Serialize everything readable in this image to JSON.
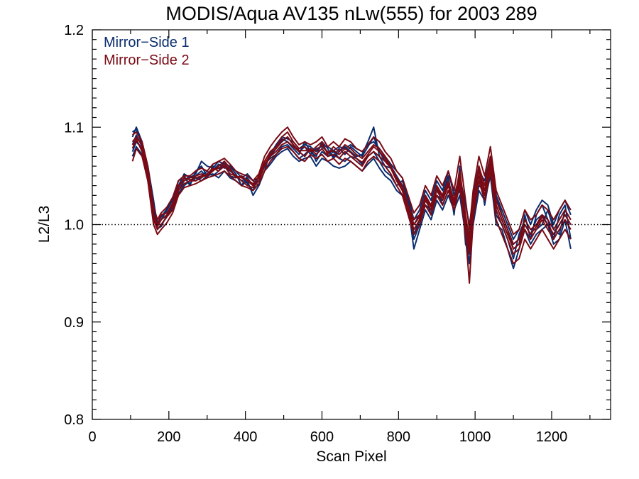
{
  "chart_data": {
    "type": "line",
    "title": "MODIS/Aqua AV135 nLw(555) for 2003 289",
    "xlabel": "Scan Pixel",
    "ylabel": "L2/L3",
    "xlim": [
      0,
      1354
    ],
    "ylim": [
      0.8,
      1.2
    ],
    "x_major_ticks": [
      0,
      200,
      400,
      600,
      800,
      1000,
      1200
    ],
    "x_tick_labels": [
      "0",
      "200",
      "400",
      "600",
      "800",
      "1000",
      "1200"
    ],
    "y_major_ticks": [
      0.8,
      0.9,
      1.0,
      1.1,
      1.2
    ],
    "y_tick_labels": [
      "0.8",
      "0.9",
      "1.0",
      "1.1",
      "1.2"
    ],
    "reference_line": 1.0,
    "legend_placement": "top-left",
    "legend": [
      {
        "label": "Mirror−Side 1",
        "color": "#0a2d6e"
      },
      {
        "label": "Mirror−Side 2",
        "color": "#7a0a14"
      }
    ],
    "x": [
      105,
      115,
      130,
      145,
      160,
      170,
      180,
      195,
      210,
      225,
      240,
      255,
      270,
      285,
      300,
      315,
      330,
      345,
      360,
      375,
      390,
      405,
      420,
      435,
      450,
      465,
      480,
      495,
      510,
      525,
      540,
      555,
      570,
      585,
      600,
      615,
      630,
      645,
      660,
      675,
      690,
      705,
      720,
      735,
      750,
      765,
      780,
      795,
      810,
      825,
      840,
      855,
      870,
      885,
      900,
      915,
      930,
      945,
      960,
      975,
      985,
      995,
      1010,
      1025,
      1040,
      1055,
      1070,
      1085,
      1100,
      1115,
      1130,
      1145,
      1160,
      1175,
      1190,
      1205,
      1220,
      1235,
      1250
    ],
    "series_meta": [
      {
        "group": "Mirror−Side 1",
        "color": "#0a2d6e"
      },
      {
        "group": "Mirror−Side 2",
        "color": "#7a0a14"
      }
    ],
    "series": [
      {
        "mirror_side": 1,
        "values": [
          1.082,
          1.092,
          1.08,
          1.055,
          1.02,
          1.0,
          1.01,
          1.012,
          1.02,
          1.038,
          1.048,
          1.042,
          1.05,
          1.055,
          1.048,
          1.06,
          1.058,
          1.06,
          1.055,
          1.05,
          1.045,
          1.048,
          1.04,
          1.045,
          1.06,
          1.07,
          1.078,
          1.085,
          1.09,
          1.082,
          1.075,
          1.08,
          1.072,
          1.078,
          1.08,
          1.075,
          1.07,
          1.078,
          1.072,
          1.08,
          1.075,
          1.07,
          1.08,
          1.09,
          1.075,
          1.065,
          1.06,
          1.05,
          1.04,
          1.02,
          1.0,
          1.01,
          1.02,
          1.015,
          1.03,
          1.025,
          1.04,
          1.02,
          1.045,
          1.0,
          0.98,
          1.02,
          1.05,
          1.03,
          1.06,
          1.02,
          1.005,
          0.99,
          0.98,
          0.985,
          1.0,
          0.99,
          1.005,
          1.01,
          1.0,
          0.99,
          1.0,
          1.01,
          1.0
        ]
      },
      {
        "mirror_side": 1,
        "values": [
          1.09,
          1.1,
          1.085,
          1.06,
          1.025,
          0.998,
          1.005,
          1.015,
          1.025,
          1.045,
          1.05,
          1.04,
          1.055,
          1.06,
          1.05,
          1.055,
          1.062,
          1.058,
          1.06,
          1.052,
          1.04,
          1.05,
          1.045,
          1.04,
          1.055,
          1.075,
          1.08,
          1.088,
          1.085,
          1.078,
          1.072,
          1.085,
          1.075,
          1.07,
          1.085,
          1.078,
          1.068,
          1.075,
          1.08,
          1.075,
          1.07,
          1.072,
          1.085,
          1.1,
          1.07,
          1.06,
          1.058,
          1.045,
          1.035,
          1.015,
          0.985,
          1.0,
          1.025,
          1.02,
          1.035,
          1.03,
          1.05,
          1.01,
          1.06,
          0.98,
          0.97,
          1.03,
          1.06,
          1.02,
          1.055,
          1.03,
          1.01,
          0.995,
          0.975,
          0.98,
          1.01,
          0.985,
          1.01,
          1.02,
          1.005,
          0.985,
          1.01,
          1.02,
          0.985
        ]
      },
      {
        "mirror_side": 1,
        "values": [
          1.075,
          1.085,
          1.078,
          1.05,
          1.015,
          0.995,
          1.0,
          1.008,
          1.018,
          1.035,
          1.045,
          1.05,
          1.045,
          1.05,
          1.055,
          1.05,
          1.055,
          1.065,
          1.05,
          1.048,
          1.05,
          1.042,
          1.035,
          1.05,
          1.062,
          1.068,
          1.072,
          1.08,
          1.082,
          1.075,
          1.068,
          1.072,
          1.078,
          1.065,
          1.075,
          1.07,
          1.075,
          1.068,
          1.065,
          1.07,
          1.068,
          1.062,
          1.07,
          1.075,
          1.065,
          1.055,
          1.05,
          1.04,
          1.045,
          1.025,
          0.99,
          1.005,
          1.03,
          1.01,
          1.04,
          1.02,
          1.035,
          1.025,
          1.035,
          1.005,
          0.99,
          1.01,
          1.04,
          1.035,
          1.065,
          1.01,
          1.0,
          0.985,
          0.965,
          0.99,
          1.005,
          0.995,
          0.995,
          1.0,
          1.015,
          0.995,
          0.99,
          1.015,
          1.005
        ]
      },
      {
        "mirror_side": 1,
        "values": [
          1.07,
          1.08,
          1.072,
          1.045,
          1.012,
          0.996,
          0.998,
          1.01,
          1.015,
          1.032,
          1.04,
          1.045,
          1.048,
          1.045,
          1.05,
          1.052,
          1.048,
          1.055,
          1.048,
          1.045,
          1.04,
          1.045,
          1.03,
          1.04,
          1.055,
          1.062,
          1.07,
          1.075,
          1.078,
          1.07,
          1.065,
          1.068,
          1.07,
          1.06,
          1.068,
          1.065,
          1.06,
          1.058,
          1.06,
          1.065,
          1.06,
          1.055,
          1.062,
          1.068,
          1.058,
          1.05,
          1.045,
          1.035,
          1.03,
          1.02,
          0.975,
          0.995,
          1.015,
          1.005,
          1.025,
          1.015,
          1.03,
          1.015,
          1.03,
          0.99,
          0.96,
          1.0,
          1.035,
          1.025,
          1.05,
          1.0,
          0.995,
          0.975,
          0.955,
          0.975,
          0.995,
          0.98,
          0.99,
          0.995,
          1.0,
          0.98,
          0.985,
          1.005,
          0.975
        ]
      },
      {
        "mirror_side": 1,
        "values": [
          1.095,
          1.098,
          1.082,
          1.058,
          1.022,
          1.002,
          1.008,
          1.016,
          1.028,
          1.04,
          1.052,
          1.048,
          1.052,
          1.065,
          1.06,
          1.058,
          1.065,
          1.062,
          1.06,
          1.055,
          1.048,
          1.052,
          1.045,
          1.048,
          1.06,
          1.072,
          1.082,
          1.09,
          1.088,
          1.085,
          1.078,
          1.082,
          1.08,
          1.075,
          1.082,
          1.08,
          1.076,
          1.08,
          1.078,
          1.082,
          1.078,
          1.075,
          1.082,
          1.085,
          1.078,
          1.07,
          1.062,
          1.055,
          1.048,
          1.028,
          1.005,
          1.015,
          1.035,
          1.025,
          1.045,
          1.035,
          1.055,
          1.03,
          1.05,
          1.02,
          1.0,
          1.025,
          1.055,
          1.045,
          1.07,
          1.03,
          1.015,
          1.0,
          0.985,
          0.995,
          1.015,
          1.0,
          1.015,
          1.025,
          1.02,
          1.0,
          1.015,
          1.025,
          1.01
        ]
      },
      {
        "mirror_side": 2,
        "values": [
          1.085,
          1.09,
          1.082,
          1.052,
          1.01,
          1.0,
          1.01,
          1.012,
          1.022,
          1.04,
          1.045,
          1.048,
          1.05,
          1.052,
          1.05,
          1.055,
          1.06,
          1.065,
          1.058,
          1.048,
          1.05,
          1.045,
          1.04,
          1.05,
          1.065,
          1.075,
          1.08,
          1.09,
          1.095,
          1.085,
          1.078,
          1.08,
          1.075,
          1.08,
          1.085,
          1.072,
          1.08,
          1.075,
          1.082,
          1.078,
          1.072,
          1.068,
          1.075,
          1.082,
          1.078,
          1.07,
          1.06,
          1.048,
          1.04,
          1.02,
          1.005,
          1.01,
          1.03,
          1.02,
          1.04,
          1.03,
          1.045,
          1.025,
          1.055,
          1.01,
          0.985,
          1.025,
          1.06,
          1.04,
          1.07,
          1.025,
          1.01,
          0.995,
          0.98,
          0.985,
          1.005,
          0.995,
          1.0,
          1.01,
          1.005,
          0.995,
          1.005,
          1.015,
          1.005
        ]
      },
      {
        "mirror_side": 2,
        "values": [
          1.078,
          1.088,
          1.075,
          1.048,
          1.005,
          0.995,
          1.0,
          1.008,
          1.015,
          1.035,
          1.042,
          1.045,
          1.045,
          1.048,
          1.052,
          1.058,
          1.055,
          1.06,
          1.052,
          1.05,
          1.045,
          1.04,
          1.038,
          1.045,
          1.06,
          1.07,
          1.075,
          1.082,
          1.085,
          1.08,
          1.075,
          1.07,
          1.078,
          1.072,
          1.078,
          1.07,
          1.072,
          1.068,
          1.075,
          1.07,
          1.065,
          1.06,
          1.07,
          1.075,
          1.07,
          1.065,
          1.058,
          1.045,
          1.035,
          1.015,
          0.995,
          1.005,
          1.025,
          1.015,
          1.035,
          1.025,
          1.04,
          1.02,
          1.045,
          1.0,
          0.97,
          1.015,
          1.05,
          1.03,
          1.06,
          1.015,
          1.0,
          0.985,
          0.97,
          0.975,
          0.995,
          0.985,
          0.995,
          1.005,
          0.995,
          0.985,
          0.995,
          1.005,
          0.995
        ]
      },
      {
        "mirror_side": 2,
        "values": [
          1.092,
          1.095,
          1.085,
          1.06,
          1.018,
          1.005,
          1.012,
          1.018,
          1.028,
          1.045,
          1.05,
          1.05,
          1.055,
          1.058,
          1.055,
          1.062,
          1.065,
          1.068,
          1.062,
          1.055,
          1.052,
          1.05,
          1.045,
          1.052,
          1.07,
          1.08,
          1.088,
          1.095,
          1.1,
          1.09,
          1.082,
          1.085,
          1.082,
          1.085,
          1.09,
          1.08,
          1.085,
          1.08,
          1.088,
          1.085,
          1.078,
          1.075,
          1.082,
          1.09,
          1.085,
          1.075,
          1.068,
          1.055,
          1.048,
          1.03,
          1.012,
          1.02,
          1.04,
          1.03,
          1.05,
          1.04,
          1.055,
          1.035,
          1.07,
          1.025,
          0.995,
          1.035,
          1.07,
          1.05,
          1.08,
          1.035,
          1.02,
          1.005,
          0.99,
          0.995,
          1.015,
          1.005,
          1.01,
          1.02,
          1.015,
          1.005,
          1.015,
          1.025,
          1.015
        ]
      },
      {
        "mirror_side": 2,
        "values": [
          1.065,
          1.078,
          1.07,
          1.045,
          1.0,
          0.99,
          0.995,
          1.002,
          1.012,
          1.03,
          1.038,
          1.04,
          1.042,
          1.045,
          1.048,
          1.05,
          1.052,
          1.055,
          1.05,
          1.045,
          1.04,
          1.038,
          1.035,
          1.042,
          1.055,
          1.065,
          1.072,
          1.078,
          1.08,
          1.075,
          1.068,
          1.065,
          1.072,
          1.068,
          1.072,
          1.065,
          1.068,
          1.062,
          1.068,
          1.065,
          1.06,
          1.055,
          1.065,
          1.07,
          1.065,
          1.06,
          1.052,
          1.04,
          1.03,
          1.01,
          0.99,
          1.0,
          1.02,
          1.01,
          1.03,
          1.02,
          1.035,
          1.015,
          1.04,
          0.99,
          0.94,
          1.005,
          1.045,
          1.025,
          1.055,
          1.005,
          0.99,
          0.975,
          0.96,
          0.965,
          0.985,
          0.975,
          0.985,
          0.995,
          0.985,
          0.975,
          0.985,
          0.995,
          0.985
        ]
      },
      {
        "mirror_side": 2,
        "values": [
          1.082,
          1.086,
          1.078,
          1.05,
          1.008,
          0.998,
          1.005,
          1.01,
          1.02,
          1.038,
          1.048,
          1.046,
          1.048,
          1.05,
          1.05,
          1.056,
          1.058,
          1.062,
          1.056,
          1.05,
          1.048,
          1.046,
          1.042,
          1.048,
          1.062,
          1.072,
          1.078,
          1.086,
          1.09,
          1.082,
          1.076,
          1.076,
          1.076,
          1.076,
          1.082,
          1.074,
          1.076,
          1.072,
          1.078,
          1.074,
          1.068,
          1.064,
          1.072,
          1.08,
          1.075,
          1.068,
          1.058,
          1.046,
          1.038,
          1.018,
          1.0,
          1.008,
          1.028,
          1.018,
          1.038,
          1.028,
          1.042,
          1.022,
          1.05,
          1.005,
          0.978,
          1.02,
          1.055,
          1.035,
          1.065,
          1.02,
          1.005,
          0.99,
          0.975,
          0.98,
          1.0,
          0.99,
          0.998,
          1.008,
          1.0,
          0.99,
          1.0,
          1.01,
          1.0
        ]
      }
    ]
  }
}
